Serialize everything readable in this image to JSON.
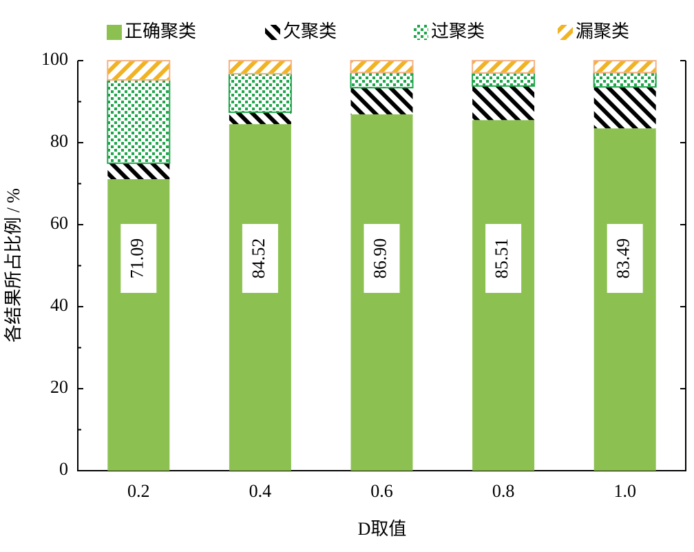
{
  "chart_data": {
    "type": "stacked-bar",
    "x_label": "D取值",
    "y_label": "各结果所占比例 / %",
    "categories": [
      "0.2",
      "0.4",
      "0.6",
      "0.8",
      "1.0"
    ],
    "series": [
      {
        "name": "正确聚类",
        "color": "#8cc152",
        "values": [
          71.09,
          84.52,
          86.9,
          85.51,
          83.49
        ],
        "value_labels": [
          "71.09",
          "84.52",
          "86.90",
          "85.51",
          "83.49"
        ]
      },
      {
        "name": "欠聚类",
        "color": "#000000",
        "values": [
          3.9,
          2.9,
          6.5,
          8.3,
          10.1
        ]
      },
      {
        "name": "过聚类",
        "color": "#1ea64a",
        "values": [
          20.3,
          9.4,
          3.7,
          3.2,
          3.5
        ]
      },
      {
        "name": "漏聚类",
        "color": "#f0b323",
        "values": [
          4.7,
          3.2,
          2.9,
          3.0,
          2.9
        ]
      }
    ],
    "ylim": [
      0,
      100
    ],
    "yticks": [
      0,
      20,
      40,
      60,
      80,
      100
    ]
  }
}
